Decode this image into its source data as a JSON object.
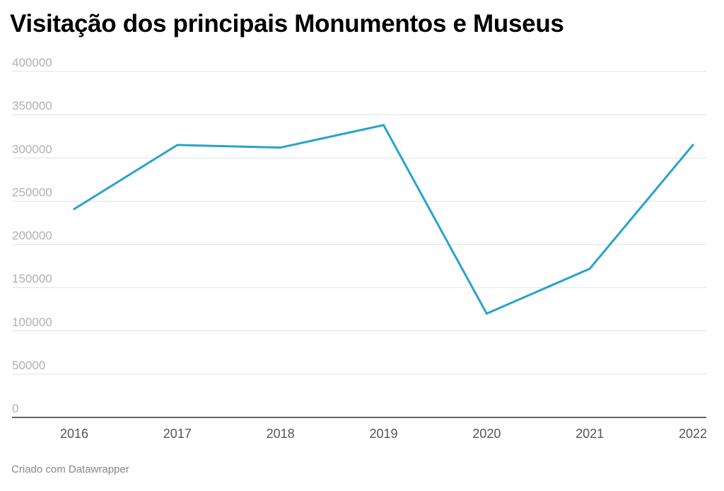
{
  "chart_data": {
    "type": "line",
    "title": "Visitação dos principais Monumentos e Museus",
    "xlabel": "",
    "ylabel": "",
    "x": [
      "2016",
      "2017",
      "2018",
      "2019",
      "2020",
      "2021",
      "2022"
    ],
    "series": [
      {
        "name": "",
        "color": "#27a3cc",
        "values": [
          241000,
          315000,
          312000,
          338000,
          120000,
          172000,
          315000
        ]
      }
    ],
    "ylim": [
      0,
      400000
    ],
    "yticks": [
      0,
      50000,
      100000,
      150000,
      200000,
      250000,
      300000,
      350000,
      400000
    ],
    "grid": true,
    "legend": "none"
  },
  "footer": "Criado com Datawrapper"
}
